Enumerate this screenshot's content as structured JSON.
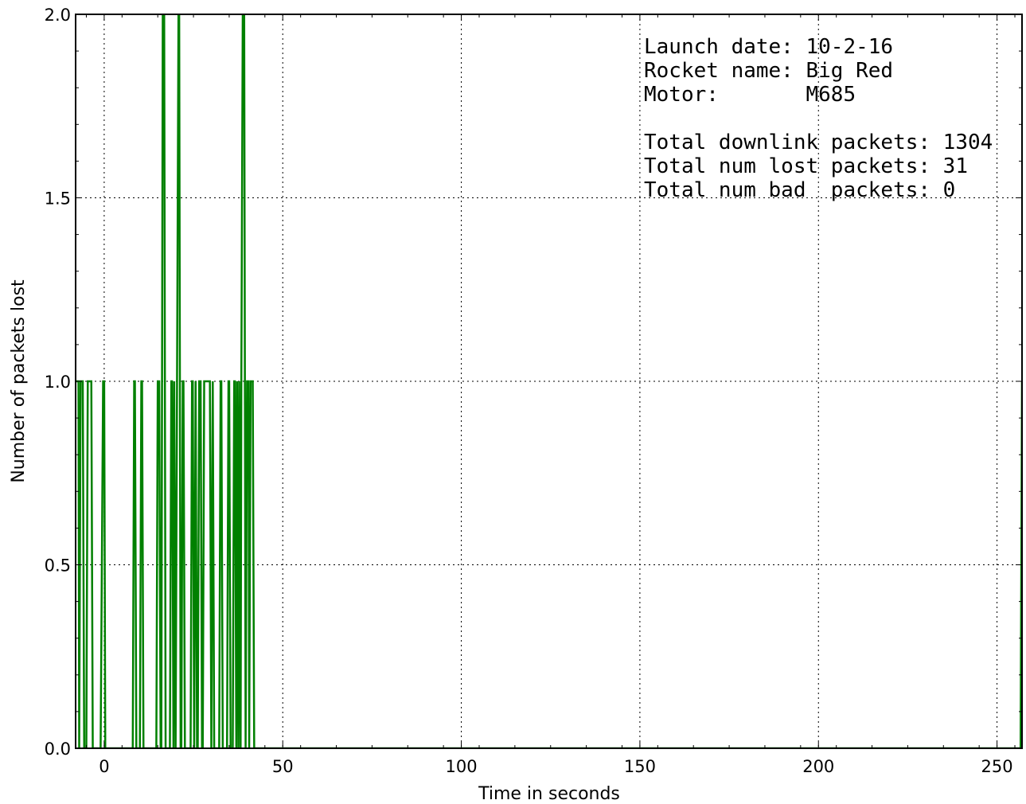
{
  "chart_data": {
    "type": "line",
    "title": "",
    "xlabel": "Time in seconds",
    "ylabel": "Number of packets lost",
    "xlim": [
      -8,
      257
    ],
    "ylim": [
      0,
      2
    ],
    "xticks": [
      0,
      50,
      100,
      150,
      200,
      250
    ],
    "xtick_labels": [
      "0",
      "50",
      "100",
      "150",
      "200",
      "250"
    ],
    "yticks": [
      0,
      0.5,
      1,
      1.5,
      2
    ],
    "ytick_labels": [
      "0.0",
      "0.5",
      "1.0",
      "1.5",
      "2.0"
    ],
    "grid": true,
    "colors": {
      "series": "#008000"
    },
    "annotation": [
      "Launch date: 10-2-16",
      "Rocket name: Big Red",
      "Motor:       M685",
      "",
      "Total downlink packets: 1304",
      "Total num lost packets: 31",
      "Total num bad  packets: 0"
    ],
    "series": [
      {
        "x": [
          -7.8,
          -7.2,
          -7.0,
          -6.6,
          -6.0,
          -5.6,
          -5.0,
          -4.6,
          -3.6,
          -3.2,
          -1.0,
          -0.3,
          0.0,
          0.3,
          8.0,
          8.4,
          8.6,
          9.0,
          10.0,
          10.4,
          10.6,
          11.0,
          14.6,
          15.0,
          15.4,
          15.8,
          16.0,
          16.4,
          16.8,
          17.2,
          18.4,
          18.8,
          19.0,
          19.4,
          19.6,
          20.0,
          20.4,
          20.8,
          21.0,
          21.4,
          21.6,
          22.0,
          22.2,
          22.6,
          24.2,
          24.6,
          24.8,
          25.2,
          25.6,
          26.0,
          26.2,
          26.6,
          27.0,
          27.4,
          27.6,
          28.0,
          29.6,
          30.0,
          30.4,
          30.8,
          32.2,
          32.6,
          32.8,
          33.2,
          34.4,
          34.8,
          35.0,
          35.4,
          36.0,
          36.4,
          36.6,
          37.0,
          37.2,
          37.6,
          37.8,
          38.2,
          38.4,
          38.8,
          39.2,
          39.6,
          40.0,
          40.4,
          40.6,
          41.0,
          41.6,
          42.0,
          42.4,
          256.6,
          257.0
        ],
        "y": [
          1,
          1,
          0,
          1,
          1,
          0,
          0,
          1,
          1,
          0,
          0,
          1,
          1,
          0,
          0,
          1,
          1,
          0,
          0,
          1,
          1,
          0,
          0,
          1,
          1,
          0,
          0,
          2,
          2,
          0,
          0,
          1,
          1,
          0,
          1,
          0,
          1,
          2,
          2,
          0,
          0,
          1,
          1,
          0,
          0,
          1,
          1,
          0,
          1,
          0,
          0,
          1,
          1,
          0,
          0,
          1,
          1,
          0,
          1,
          0,
          0,
          1,
          1,
          0,
          0,
          1,
          1,
          0,
          0,
          1,
          1,
          0,
          1,
          0,
          1,
          0,
          1,
          2,
          2,
          0,
          1,
          1,
          0,
          1,
          1,
          0,
          0,
          0,
          1
        ]
      }
    ]
  }
}
